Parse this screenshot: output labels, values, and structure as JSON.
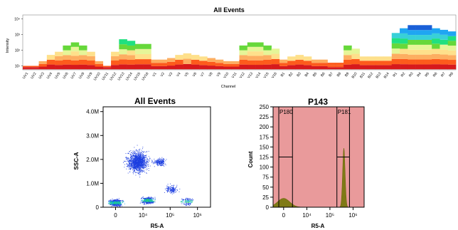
{
  "chart_data": [
    {
      "type": "heatmap",
      "title": "All Events",
      "xlabel": "Channel",
      "ylabel": "Intensity",
      "y_scale": "log",
      "y_ticks": [
        "10¹",
        "10²",
        "10³",
        "10⁴"
      ],
      "categories": [
        "UV1",
        "UV2",
        "UV3",
        "UV4",
        "UV5",
        "UV6",
        "UV7",
        "UV8",
        "UV9",
        "UV10",
        "UV11",
        "UV12",
        "UV13",
        "UV14",
        "UV15",
        "UV16",
        "V1",
        "V2",
        "V3",
        "V4",
        "V5",
        "V6",
        "V7",
        "V8",
        "V9",
        "V10",
        "V11",
        "V12",
        "V13",
        "V14",
        "V15",
        "V16",
        "B1",
        "B2",
        "B3",
        "B4",
        "B5",
        "B6",
        "B7",
        "B8",
        "B9",
        "B10",
        "B11",
        "B12",
        "B13",
        "B14",
        "R1",
        "R2",
        "R3",
        "R4",
        "R5",
        "R6",
        "R7",
        "R8"
      ],
      "upper_log": [
        1.0,
        1.0,
        1.3,
        1.7,
        1.9,
        2.3,
        2.5,
        2.3,
        1.9,
        1.3,
        1.0,
        1.9,
        2.7,
        2.6,
        2.4,
        2.4,
        1.4,
        1.4,
        1.5,
        1.7,
        1.8,
        1.7,
        1.6,
        1.5,
        1.4,
        1.3,
        1.3,
        2.3,
        2.5,
        2.5,
        2.3,
        2.1,
        1.4,
        1.6,
        1.7,
        1.6,
        1.4,
        1.4,
        1.2,
        1.2,
        2.3,
        2.1,
        1.6,
        1.6,
        1.6,
        1.6,
        3.1,
        3.4,
        3.6,
        3.6,
        3.6,
        3.4,
        3.3,
        3.2
      ],
      "colors": [
        "#d7191c",
        "#fd5b1c",
        "#fdae61",
        "#fee08b",
        "#e6f598",
        "#66d83a",
        "#20e080",
        "#38d0d8",
        "#1fa6f2",
        "#1a60d8"
      ]
    },
    {
      "type": "scatter",
      "title": "All Events",
      "xlabel": "R5-A",
      "ylabel": "SSC-A",
      "x_scale": "biexponential",
      "x_ticks": [
        "0",
        "10⁴",
        "10⁵",
        "10⁶"
      ],
      "y_ticks": [
        "0",
        "1.0M",
        "2.0M",
        "3.0M",
        "4.0M"
      ],
      "ylim": [
        0,
        4200000
      ],
      "populations": [
        {
          "x": 6000,
          "y": 1900000,
          "n": 1400
        },
        {
          "x": 0,
          "y": 200000,
          "n": 650
        },
        {
          "x": 15000,
          "y": 300000,
          "n": 450
        },
        {
          "x": 110000,
          "y": 750000,
          "n": 160
        },
        {
          "x": 420000,
          "y": 250000,
          "n": 140
        },
        {
          "x": 40000,
          "y": 1900000,
          "n": 200
        }
      ]
    },
    {
      "type": "area",
      "title": "P143",
      "xlabel": "R5-A",
      "ylabel": "Count",
      "x_scale": "biexponential",
      "x_ticks": [
        "0",
        "10⁴",
        "10⁵",
        "10⁶"
      ],
      "y_ticks": [
        "0",
        "25",
        "50",
        "75",
        "100",
        "125",
        "150",
        "175",
        "200",
        "225",
        "250"
      ],
      "ylim": [
        0,
        250
      ],
      "peaks": [
        {
          "x": 0,
          "count": 22
        },
        {
          "x": 400000,
          "count": 147
        }
      ],
      "gates": [
        {
          "name": "P180",
          "min": -1000,
          "max": 2000,
          "level": 125
        },
        {
          "name": "P181",
          "min": 200000,
          "max": 700000,
          "level": 125
        }
      ]
    }
  ]
}
